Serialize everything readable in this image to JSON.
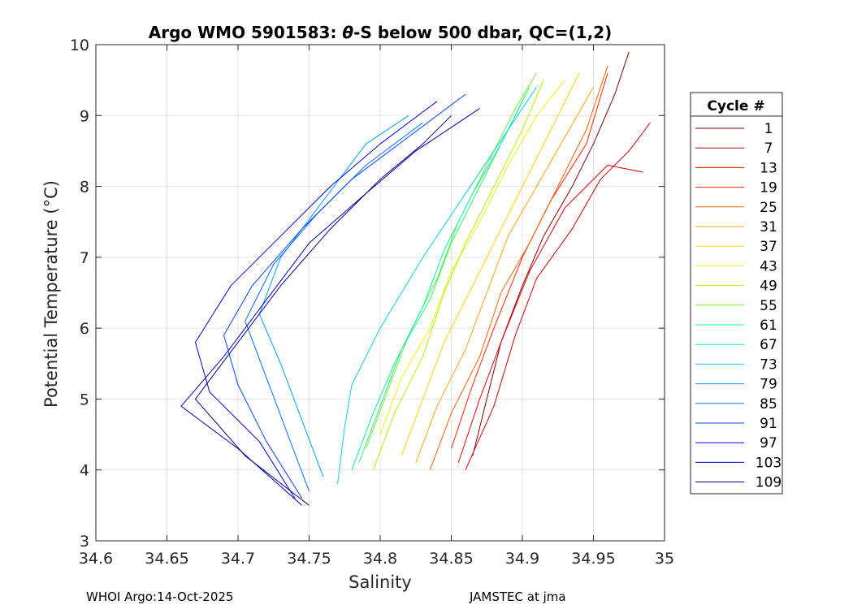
{
  "chart_data": {
    "type": "line",
    "title_prefix": "Argo WMO 5901583: ",
    "title_symbol": "θ",
    "title_suffix": "-S below 500 dbar,  QC=(1,2)",
    "xlabel": "Salinity",
    "ylabel_main": "Potential Temperature (",
    "ylabel_unit": "°C)",
    "xlim": [
      34.6,
      35.0
    ],
    "ylim": [
      3,
      10
    ],
    "xticks": [
      34.6,
      34.65,
      34.7,
      34.75,
      34.8,
      34.85,
      34.9,
      34.95,
      35.0
    ],
    "xtick_labels": [
      "34.6",
      "34.65",
      "34.7",
      "34.75",
      "34.8",
      "34.85",
      "34.9",
      "34.95",
      "35"
    ],
    "yticks": [
      3,
      4,
      5,
      6,
      7,
      8,
      9,
      10
    ],
    "ytick_labels": [
      "3",
      "4",
      "5",
      "6",
      "7",
      "8",
      "9",
      "10"
    ],
    "grid": true,
    "legend_title": "Cycle #",
    "legend_position": "right-outside",
    "series": [
      {
        "name": "1",
        "color": "#800000",
        "points": [
          [
            34.865,
            4.2
          ],
          [
            34.875,
            5.0
          ],
          [
            34.885,
            5.8
          ],
          [
            34.9,
            6.6
          ],
          [
            34.915,
            7.3
          ],
          [
            34.935,
            8.0
          ],
          [
            34.95,
            8.6
          ],
          [
            34.965,
            9.3
          ],
          [
            34.975,
            9.9
          ]
        ]
      },
      {
        "name": "7",
        "color": "#cc0000",
        "points": [
          [
            34.86,
            4.0
          ],
          [
            34.88,
            4.9
          ],
          [
            34.895,
            5.9
          ],
          [
            34.91,
            6.7
          ],
          [
            34.935,
            7.4
          ],
          [
            34.955,
            8.1
          ],
          [
            34.975,
            8.5
          ],
          [
            34.99,
            8.9
          ]
        ]
      },
      {
        "name": "13",
        "color": "#e60000",
        "points": [
          [
            34.855,
            4.1
          ],
          [
            34.87,
            5.0
          ],
          [
            34.885,
            5.8
          ],
          [
            34.905,
            6.8
          ],
          [
            34.93,
            7.7
          ],
          [
            34.96,
            8.3
          ],
          [
            34.985,
            8.2
          ]
        ]
      },
      {
        "name": "19",
        "color": "#ff2000",
        "points": [
          [
            34.85,
            4.3
          ],
          [
            34.865,
            5.2
          ],
          [
            34.88,
            6.0
          ],
          [
            34.9,
            7.0
          ],
          [
            34.92,
            7.8
          ],
          [
            34.945,
            8.6
          ],
          [
            34.96,
            9.6
          ]
        ]
      },
      {
        "name": "25",
        "color": "#ff6000",
        "points": [
          [
            34.835,
            4.0
          ],
          [
            34.85,
            4.8
          ],
          [
            34.87,
            5.6
          ],
          [
            34.885,
            6.5
          ],
          [
            34.905,
            7.2
          ],
          [
            34.925,
            8.0
          ],
          [
            34.945,
            8.8
          ],
          [
            34.96,
            9.7
          ]
        ]
      },
      {
        "name": "31",
        "color": "#ffa000",
        "points": [
          [
            34.825,
            4.1
          ],
          [
            34.84,
            4.9
          ],
          [
            34.86,
            5.7
          ],
          [
            34.875,
            6.5
          ],
          [
            34.89,
            7.3
          ],
          [
            34.91,
            8.0
          ],
          [
            34.93,
            8.7
          ],
          [
            34.95,
            9.4
          ]
        ]
      },
      {
        "name": "37",
        "color": "#ffd000",
        "points": [
          [
            34.815,
            4.2
          ],
          [
            34.83,
            5.0
          ],
          [
            34.845,
            5.8
          ],
          [
            34.865,
            6.6
          ],
          [
            34.885,
            7.4
          ],
          [
            34.905,
            8.2
          ],
          [
            34.925,
            9.0
          ],
          [
            34.94,
            9.6
          ]
        ]
      },
      {
        "name": "43",
        "color": "#f0f000",
        "points": [
          [
            34.8,
            4.5
          ],
          [
            34.815,
            5.3
          ],
          [
            34.835,
            6.0
          ],
          [
            34.85,
            6.8
          ],
          [
            34.87,
            7.5
          ],
          [
            34.89,
            8.3
          ],
          [
            34.91,
            9.0
          ],
          [
            34.93,
            9.5
          ]
        ]
      },
      {
        "name": "49",
        "color": "#b0f000",
        "points": [
          [
            34.795,
            4.0
          ],
          [
            34.81,
            4.8
          ],
          [
            34.83,
            5.6
          ],
          [
            34.845,
            6.5
          ],
          [
            34.86,
            7.2
          ],
          [
            34.88,
            8.0
          ],
          [
            34.9,
            8.8
          ],
          [
            34.915,
            9.5
          ]
        ]
      },
      {
        "name": "55",
        "color": "#70f030",
        "points": [
          [
            34.79,
            4.3
          ],
          [
            34.805,
            5.1
          ],
          [
            34.82,
            5.9
          ],
          [
            34.84,
            6.7
          ],
          [
            34.855,
            7.5
          ],
          [
            34.875,
            8.3
          ],
          [
            34.895,
            9.1
          ],
          [
            34.91,
            9.6
          ]
        ]
      },
      {
        "name": "61",
        "color": "#30f070",
        "points": [
          [
            34.785,
            4.1
          ],
          [
            34.8,
            4.9
          ],
          [
            34.815,
            5.7
          ],
          [
            34.835,
            6.4
          ],
          [
            34.85,
            7.2
          ],
          [
            34.87,
            8.0
          ],
          [
            34.89,
            8.8
          ],
          [
            34.905,
            9.4
          ]
        ]
      },
      {
        "name": "67",
        "color": "#00f0b0",
        "points": [
          [
            34.78,
            4.0
          ],
          [
            34.795,
            4.8
          ],
          [
            34.81,
            5.5
          ],
          [
            34.83,
            6.3
          ],
          [
            34.845,
            7.1
          ],
          [
            34.865,
            7.9
          ],
          [
            34.885,
            8.6
          ],
          [
            34.9,
            9.2
          ]
        ]
      },
      {
        "name": "73",
        "color": "#00d0f0",
        "points": [
          [
            34.77,
            3.8
          ],
          [
            34.775,
            4.6
          ],
          [
            34.78,
            5.2
          ],
          [
            34.8,
            6.0
          ],
          [
            34.83,
            7.0
          ],
          [
            34.86,
            7.9
          ],
          [
            34.89,
            8.8
          ],
          [
            34.91,
            9.4
          ]
        ]
      },
      {
        "name": "79",
        "color": "#00a0ff",
        "points": [
          [
            34.76,
            3.9
          ],
          [
            34.745,
            4.7
          ],
          [
            34.73,
            5.5
          ],
          [
            34.715,
            6.2
          ],
          [
            34.73,
            7.0
          ],
          [
            34.76,
            7.8
          ],
          [
            34.79,
            8.6
          ],
          [
            34.82,
            9.0
          ]
        ]
      },
      {
        "name": "85",
        "color": "#0070ff",
        "points": [
          [
            34.75,
            3.7
          ],
          [
            34.735,
            4.5
          ],
          [
            34.72,
            5.3
          ],
          [
            34.705,
            6.1
          ],
          [
            34.725,
            6.9
          ],
          [
            34.755,
            7.6
          ],
          [
            34.79,
            8.3
          ],
          [
            34.83,
            8.9
          ]
        ]
      },
      {
        "name": "91",
        "color": "#0040ff",
        "points": [
          [
            34.745,
            3.6
          ],
          [
            34.72,
            4.4
          ],
          [
            34.7,
            5.2
          ],
          [
            34.69,
            5.9
          ],
          [
            34.71,
            6.6
          ],
          [
            34.745,
            7.4
          ],
          [
            34.78,
            8.1
          ],
          [
            34.82,
            8.7
          ],
          [
            34.86,
            9.3
          ]
        ]
      },
      {
        "name": "97",
        "color": "#0000e0",
        "points": [
          [
            34.74,
            3.6
          ],
          [
            34.715,
            4.4
          ],
          [
            34.68,
            5.1
          ],
          [
            34.67,
            5.8
          ],
          [
            34.695,
            6.6
          ],
          [
            34.73,
            7.3
          ],
          [
            34.765,
            8.0
          ],
          [
            34.8,
            8.6
          ],
          [
            34.84,
            9.2
          ]
        ]
      },
      {
        "name": "103",
        "color": "#0000b0",
        "points": [
          [
            34.745,
            3.5
          ],
          [
            34.7,
            4.3
          ],
          [
            34.66,
            4.9
          ],
          [
            34.69,
            5.6
          ],
          [
            34.72,
            6.4
          ],
          [
            34.75,
            7.2
          ],
          [
            34.79,
            7.9
          ],
          [
            34.825,
            8.5
          ],
          [
            34.87,
            9.1
          ]
        ]
      },
      {
        "name": "109",
        "color": "#000080",
        "points": [
          [
            34.75,
            3.5
          ],
          [
            34.705,
            4.2
          ],
          [
            34.67,
            5.0
          ],
          [
            34.7,
            5.8
          ],
          [
            34.73,
            6.6
          ],
          [
            34.765,
            7.4
          ],
          [
            34.8,
            8.1
          ],
          [
            34.83,
            8.6
          ],
          [
            34.85,
            9.0
          ]
        ]
      }
    ]
  },
  "footer": {
    "left": "WHOI Argo:14-Oct-2025",
    "right": "JAMSTEC at jma"
  }
}
